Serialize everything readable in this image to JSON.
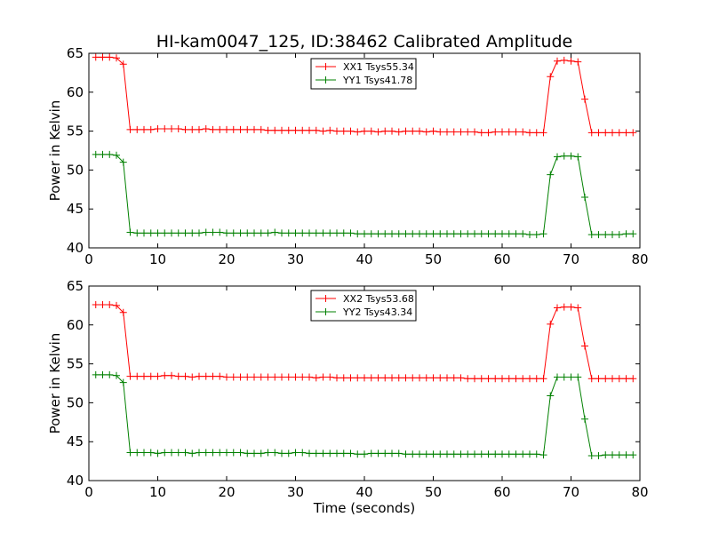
{
  "figure": {
    "title": "HI-kam0047_125, ID:38462 Calibrated Amplitude"
  },
  "colors": {
    "xx": "#e41a1c",
    "yy": "#1a8a1a",
    "red": "#ff0000",
    "green": "#008000"
  },
  "chart_data": [
    {
      "type": "line",
      "title": "HI-kam0047_125, ID:38462 Calibrated Amplitude",
      "xlabel": "",
      "ylabel": "Power in Kelvin",
      "xlim": [
        0,
        80
      ],
      "ylim": [
        40,
        65
      ],
      "xticks": [
        0,
        10,
        20,
        30,
        40,
        50,
        60,
        70,
        80
      ],
      "yticks": [
        40,
        45,
        50,
        55,
        60,
        65
      ],
      "legend": "top-center",
      "grid": false,
      "series": [
        {
          "name": "XX1 Tsys55.34",
          "color": "#ff0000",
          "x": [
            1,
            2,
            3,
            4,
            5,
            6,
            7,
            8,
            9,
            10,
            11,
            12,
            13,
            14,
            15,
            16,
            17,
            18,
            19,
            20,
            21,
            22,
            23,
            24,
            25,
            26,
            27,
            28,
            29,
            30,
            31,
            32,
            33,
            34,
            35,
            36,
            37,
            38,
            39,
            40,
            41,
            42,
            43,
            44,
            45,
            46,
            47,
            48,
            49,
            50,
            51,
            52,
            53,
            54,
            55,
            56,
            57,
            58,
            59,
            60,
            61,
            62,
            63,
            64,
            65,
            66,
            67,
            68,
            69,
            70,
            71,
            72,
            73,
            74,
            75,
            76,
            77,
            78,
            79
          ],
          "values": [
            64.5,
            64.5,
            64.5,
            64.4,
            63.6,
            55.2,
            55.2,
            55.2,
            55.2,
            55.3,
            55.3,
            55.3,
            55.3,
            55.2,
            55.2,
            55.2,
            55.3,
            55.2,
            55.2,
            55.2,
            55.2,
            55.2,
            55.2,
            55.2,
            55.2,
            55.1,
            55.1,
            55.1,
            55.1,
            55.1,
            55.1,
            55.1,
            55.1,
            55.0,
            55.1,
            55.0,
            55.0,
            55.0,
            54.9,
            55.0,
            55.0,
            54.9,
            55.0,
            55.0,
            54.9,
            55.0,
            55.0,
            55.0,
            54.9,
            55.0,
            54.9,
            54.9,
            54.9,
            54.9,
            54.9,
            54.9,
            54.8,
            54.8,
            54.9,
            54.9,
            54.9,
            54.9,
            54.9,
            54.8,
            54.8,
            54.8,
            62.0,
            64.0,
            64.1,
            64.0,
            63.9,
            59.1,
            54.8,
            54.8,
            54.8,
            54.8,
            54.8,
            54.8,
            54.8
          ]
        },
        {
          "name": "YY1 Tsys41.78",
          "color": "#008000",
          "x": [
            1,
            2,
            3,
            4,
            5,
            6,
            7,
            8,
            9,
            10,
            11,
            12,
            13,
            14,
            15,
            16,
            17,
            18,
            19,
            20,
            21,
            22,
            23,
            24,
            25,
            26,
            27,
            28,
            29,
            30,
            31,
            32,
            33,
            34,
            35,
            36,
            37,
            38,
            39,
            40,
            41,
            42,
            43,
            44,
            45,
            46,
            47,
            48,
            49,
            50,
            51,
            52,
            53,
            54,
            55,
            56,
            57,
            58,
            59,
            60,
            61,
            62,
            63,
            64,
            65,
            66,
            67,
            68,
            69,
            70,
            71,
            72,
            73,
            74,
            75,
            76,
            77,
            78,
            79
          ],
          "values": [
            52.0,
            52.0,
            52.0,
            51.9,
            51.0,
            42.0,
            41.9,
            41.9,
            41.9,
            41.9,
            41.9,
            41.9,
            41.9,
            41.9,
            41.9,
            41.9,
            42.0,
            42.0,
            42.0,
            41.9,
            41.9,
            41.9,
            41.9,
            41.9,
            41.9,
            41.9,
            42.0,
            41.9,
            41.9,
            41.9,
            41.9,
            41.9,
            41.9,
            41.9,
            41.9,
            41.9,
            41.9,
            41.9,
            41.8,
            41.8,
            41.8,
            41.8,
            41.8,
            41.8,
            41.8,
            41.8,
            41.8,
            41.8,
            41.8,
            41.8,
            41.8,
            41.8,
            41.8,
            41.8,
            41.8,
            41.8,
            41.8,
            41.8,
            41.8,
            41.8,
            41.8,
            41.8,
            41.8,
            41.7,
            41.7,
            41.8,
            49.4,
            51.7,
            51.8,
            51.8,
            51.7,
            46.5,
            41.7,
            41.7,
            41.7,
            41.7,
            41.7,
            41.8,
            41.8
          ]
        }
      ]
    },
    {
      "type": "line",
      "title": "",
      "xlabel": "Time (seconds)",
      "ylabel": "Power in Kelvin",
      "xlim": [
        0,
        80
      ],
      "ylim": [
        40,
        65
      ],
      "xticks": [
        0,
        10,
        20,
        30,
        40,
        50,
        60,
        70,
        80
      ],
      "yticks": [
        40,
        45,
        50,
        55,
        60,
        65
      ],
      "legend": "top-center",
      "grid": false,
      "series": [
        {
          "name": "XX2 Tsys53.68",
          "color": "#ff0000",
          "x": [
            1,
            2,
            3,
            4,
            5,
            6,
            7,
            8,
            9,
            10,
            11,
            12,
            13,
            14,
            15,
            16,
            17,
            18,
            19,
            20,
            21,
            22,
            23,
            24,
            25,
            26,
            27,
            28,
            29,
            30,
            31,
            32,
            33,
            34,
            35,
            36,
            37,
            38,
            39,
            40,
            41,
            42,
            43,
            44,
            45,
            46,
            47,
            48,
            49,
            50,
            51,
            52,
            53,
            54,
            55,
            56,
            57,
            58,
            59,
            60,
            61,
            62,
            63,
            64,
            65,
            66,
            67,
            68,
            69,
            70,
            71,
            72,
            73,
            74,
            75,
            76,
            77,
            78,
            79
          ],
          "values": [
            62.6,
            62.6,
            62.6,
            62.5,
            61.6,
            53.4,
            53.4,
            53.4,
            53.4,
            53.4,
            53.5,
            53.5,
            53.4,
            53.4,
            53.3,
            53.4,
            53.4,
            53.4,
            53.4,
            53.3,
            53.3,
            53.3,
            53.3,
            53.3,
            53.3,
            53.3,
            53.3,
            53.3,
            53.3,
            53.3,
            53.3,
            53.3,
            53.2,
            53.3,
            53.3,
            53.2,
            53.2,
            53.2,
            53.2,
            53.2,
            53.2,
            53.2,
            53.2,
            53.2,
            53.2,
            53.2,
            53.2,
            53.2,
            53.2,
            53.2,
            53.2,
            53.2,
            53.2,
            53.2,
            53.1,
            53.1,
            53.1,
            53.1,
            53.1,
            53.1,
            53.1,
            53.1,
            53.1,
            53.1,
            53.1,
            53.1,
            60.1,
            62.2,
            62.3,
            62.3,
            62.2,
            57.3,
            53.1,
            53.1,
            53.1,
            53.1,
            53.1,
            53.1,
            53.1
          ]
        },
        {
          "name": "YY2 Tsys43.34",
          "color": "#008000",
          "x": [
            1,
            2,
            3,
            4,
            5,
            6,
            7,
            8,
            9,
            10,
            11,
            12,
            13,
            14,
            15,
            16,
            17,
            18,
            19,
            20,
            21,
            22,
            23,
            24,
            25,
            26,
            27,
            28,
            29,
            30,
            31,
            32,
            33,
            34,
            35,
            36,
            37,
            38,
            39,
            40,
            41,
            42,
            43,
            44,
            45,
            46,
            47,
            48,
            49,
            50,
            51,
            52,
            53,
            54,
            55,
            56,
            57,
            58,
            59,
            60,
            61,
            62,
            63,
            64,
            65,
            66,
            67,
            68,
            69,
            70,
            71,
            72,
            73,
            74,
            75,
            76,
            77,
            78,
            79
          ],
          "values": [
            53.6,
            53.6,
            53.6,
            53.5,
            52.6,
            43.6,
            43.6,
            43.6,
            43.6,
            43.5,
            43.6,
            43.6,
            43.6,
            43.6,
            43.5,
            43.6,
            43.6,
            43.6,
            43.6,
            43.6,
            43.6,
            43.6,
            43.5,
            43.5,
            43.5,
            43.6,
            43.6,
            43.5,
            43.5,
            43.6,
            43.6,
            43.5,
            43.5,
            43.5,
            43.5,
            43.5,
            43.5,
            43.5,
            43.4,
            43.4,
            43.5,
            43.5,
            43.5,
            43.5,
            43.5,
            43.4,
            43.4,
            43.4,
            43.4,
            43.4,
            43.4,
            43.4,
            43.4,
            43.4,
            43.4,
            43.4,
            43.4,
            43.4,
            43.4,
            43.4,
            43.4,
            43.4,
            43.4,
            43.4,
            43.4,
            43.3,
            50.9,
            53.3,
            53.3,
            53.3,
            53.3,
            47.9,
            43.2,
            43.2,
            43.3,
            43.3,
            43.3,
            43.3,
            43.3
          ]
        }
      ]
    }
  ]
}
